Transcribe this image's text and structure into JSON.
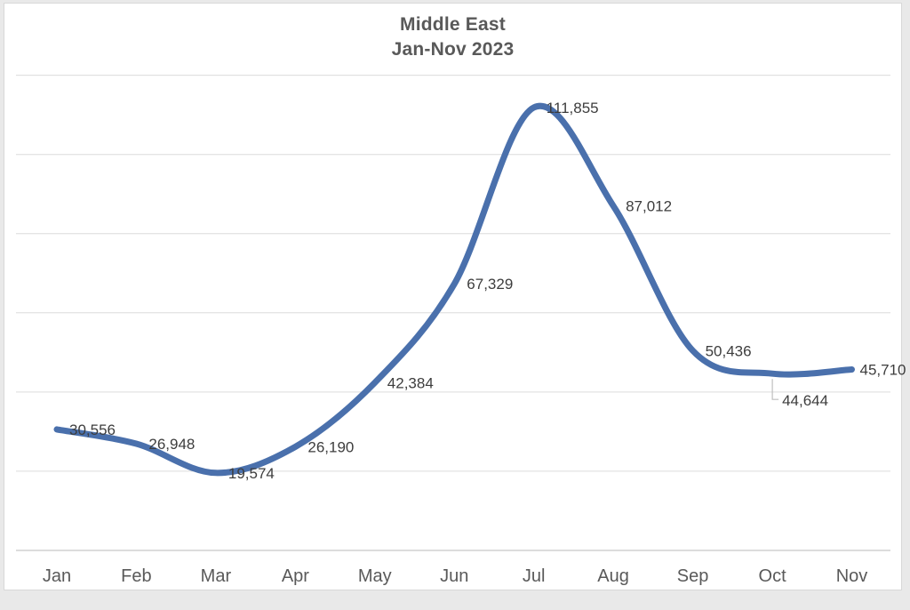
{
  "chart_data": {
    "type": "line",
    "title": "Middle East",
    "subtitle": "Jan-Nov 2023",
    "categories": [
      "Jan",
      "Feb",
      "Mar",
      "Apr",
      "May",
      "Jun",
      "Jul",
      "Aug",
      "Sep",
      "Oct",
      "Nov"
    ],
    "series": [
      {
        "name": "Middle East",
        "values": [
          30556,
          26948,
          19574,
          26190,
          42384,
          67329,
          111855,
          87012,
          50436,
          44644,
          45710
        ]
      }
    ],
    "value_labels": [
      "30,556",
      "26,948",
      "19,574",
      "26,190",
      "42,384",
      "67,329",
      "111,855",
      "87,012",
      "50,436",
      "44,644",
      "45,710"
    ],
    "label_positions": [
      "right",
      "right",
      "right",
      "right",
      "right",
      "right",
      "right",
      "right",
      "right",
      "below-leader",
      "right"
    ],
    "xlabel": "",
    "ylabel": "",
    "ylim": [
      0,
      120000
    ],
    "gridline_step": 20000,
    "grid": true,
    "y_tick_labels_visible": false,
    "legend": "none",
    "line_smoothed": true,
    "colors": {
      "line": "#4a70ac",
      "gridline": "#dcdcdc",
      "axis_line": "#c6c6c6",
      "leader_line": "#bfbfbf",
      "value_labels": "#3d3d3d",
      "month_labels": "#595959",
      "title": "#595959",
      "card_background": "#ffffff",
      "card_border": "#d8d8d8",
      "page_background": "#e9e9e9"
    }
  }
}
